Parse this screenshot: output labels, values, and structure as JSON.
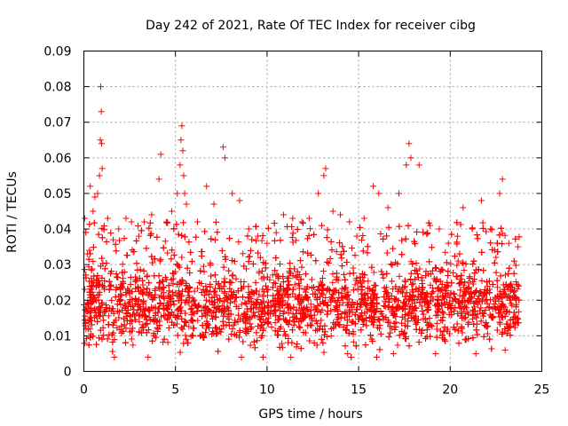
{
  "chart_data": {
    "type": "scatter",
    "title": "Day 242 of 2021, Rate Of TEC Index for receiver cibg",
    "xlabel": "GPS time / hours",
    "ylabel": "ROTI / TECUs",
    "xlim": [
      0,
      25
    ],
    "ylim": [
      0,
      0.09
    ],
    "x_ticks": [
      0,
      5,
      10,
      15,
      20,
      25
    ],
    "x_tick_labels": [
      "0",
      "5",
      "10",
      "15",
      "20",
      "25"
    ],
    "y_ticks": [
      0,
      0.01,
      0.02,
      0.03,
      0.04,
      0.05,
      0.06,
      0.07,
      0.08,
      0.09
    ],
    "y_tick_labels": [
      "0",
      "0.01",
      "0.02",
      "0.03",
      "0.04",
      "0.05",
      "0.06",
      "0.07",
      "0.08",
      "0.09"
    ],
    "grid": true,
    "marker": "plus",
    "color": "#ff0000",
    "series": [
      {
        "x_range": [
          0,
          23.8
        ],
        "typical_band": [
          0.008,
          0.03
        ],
        "points": [
          [
            0.05,
            0.043
          ],
          [
            0.2,
            0.033
          ],
          [
            0.35,
            0.052
          ],
          [
            0.5,
            0.045
          ],
          [
            0.6,
            0.049
          ],
          [
            0.75,
            0.05
          ],
          [
            0.85,
            0.055
          ],
          [
            0.9,
            0.065
          ],
          [
            0.92,
            0.08
          ],
          [
            0.95,
            0.073
          ],
          [
            0.97,
            0.064
          ],
          [
            1.0,
            0.057
          ],
          [
            1.3,
            0.043
          ],
          [
            1.6,
            0.037
          ],
          [
            1.9,
            0.04
          ],
          [
            2.3,
            0.043
          ],
          [
            2.6,
            0.042
          ],
          [
            3.0,
            0.038
          ],
          [
            3.3,
            0.042
          ],
          [
            3.7,
            0.044
          ],
          [
            4.1,
            0.054
          ],
          [
            4.2,
            0.061
          ],
          [
            4.5,
            0.042
          ],
          [
            4.8,
            0.045
          ],
          [
            5.1,
            0.05
          ],
          [
            5.25,
            0.058
          ],
          [
            5.3,
            0.065
          ],
          [
            5.35,
            0.069
          ],
          [
            5.4,
            0.062
          ],
          [
            5.45,
            0.055
          ],
          [
            5.5,
            0.05
          ],
          [
            5.6,
            0.047
          ],
          [
            6.2,
            0.042
          ],
          [
            6.7,
            0.052
          ],
          [
            7.1,
            0.047
          ],
          [
            7.6,
            0.063
          ],
          [
            7.7,
            0.06
          ],
          [
            8.1,
            0.05
          ],
          [
            8.5,
            0.048
          ],
          [
            9.0,
            0.04
          ],
          [
            9.5,
            0.038
          ],
          [
            10.0,
            0.036
          ],
          [
            10.5,
            0.039
          ],
          [
            10.9,
            0.044
          ],
          [
            11.4,
            0.043
          ],
          [
            11.9,
            0.042
          ],
          [
            12.3,
            0.043
          ],
          [
            12.8,
            0.05
          ],
          [
            13.1,
            0.055
          ],
          [
            13.2,
            0.057
          ],
          [
            13.6,
            0.045
          ],
          [
            14.0,
            0.044
          ],
          [
            14.5,
            0.042
          ],
          [
            14.9,
            0.038
          ],
          [
            15.3,
            0.043
          ],
          [
            15.8,
            0.052
          ],
          [
            16.1,
            0.05
          ],
          [
            16.6,
            0.046
          ],
          [
            17.2,
            0.05
          ],
          [
            17.6,
            0.058
          ],
          [
            17.75,
            0.064
          ],
          [
            17.85,
            0.06
          ],
          [
            18.3,
            0.058
          ],
          [
            18.9,
            0.041
          ],
          [
            19.4,
            0.04
          ],
          [
            19.9,
            0.036
          ],
          [
            20.4,
            0.038
          ],
          [
            20.7,
            0.046
          ],
          [
            21.2,
            0.04
          ],
          [
            21.7,
            0.048
          ],
          [
            22.2,
            0.04
          ],
          [
            22.7,
            0.05
          ],
          [
            22.85,
            0.054
          ],
          [
            23.2,
            0.036
          ],
          [
            23.7,
            0.035
          ],
          [
            3.5,
            0.004
          ],
          [
            8.6,
            0.004
          ],
          [
            11.3,
            0.004
          ],
          [
            14.4,
            0.005
          ],
          [
            16.9,
            0.005
          ],
          [
            19.2,
            0.005
          ],
          [
            21.4,
            0.005
          ],
          [
            23.0,
            0.006
          ]
        ]
      }
    ]
  }
}
